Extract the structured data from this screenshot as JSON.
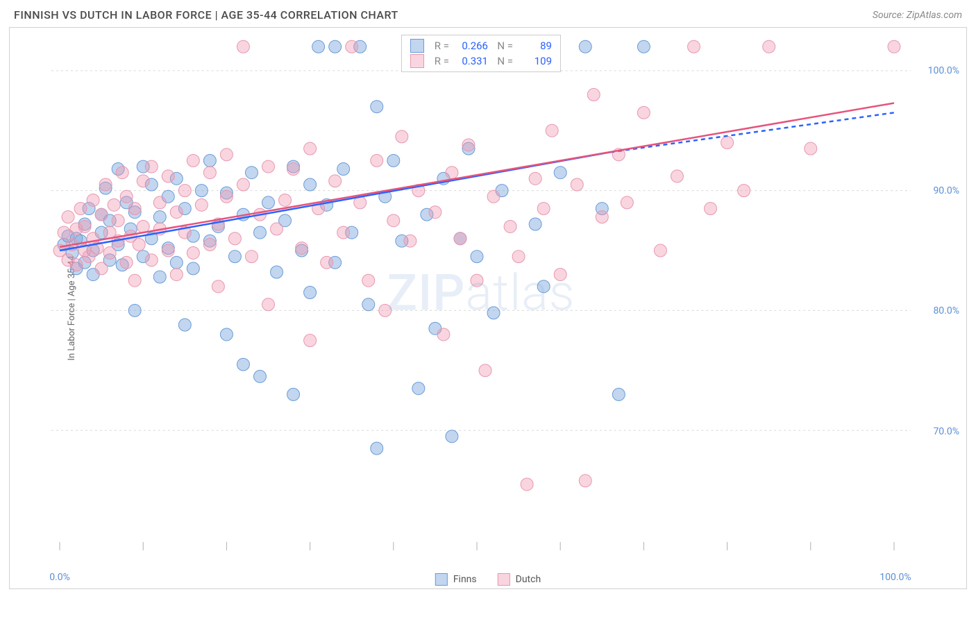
{
  "title": "FINNISH VS DUTCH IN LABOR FORCE | AGE 35-44 CORRELATION CHART",
  "source": "Source: ZipAtlas.com",
  "watermark": {
    "zip": "ZIP",
    "atlas": "atlas"
  },
  "y_axis": {
    "label": "In Labor Force | Age 35-44",
    "ticks": [
      70.0,
      80.0,
      90.0,
      100.0
    ],
    "tick_labels": [
      "70.0%",
      "80.0%",
      "90.0%",
      "100.0%"
    ],
    "domain_min": 60.0,
    "domain_max": 103.0
  },
  "x_axis": {
    "ticks": [
      0,
      10,
      20,
      30,
      40,
      50,
      60,
      70,
      80,
      90,
      100
    ],
    "labeled_ticks": [
      0,
      100
    ],
    "tick_labels": {
      "0": "0.0%",
      "100": "100.0%"
    },
    "domain_min": -1.0,
    "domain_max": 102.0
  },
  "series": [
    {
      "name": "Finns",
      "fill_color": "rgba(120,165,220,0.45)",
      "stroke_color": "#6a9bd8",
      "line_color": "#2962ff",
      "trend_start": {
        "x": 0,
        "y": 85.0
      },
      "trend_end_solid": {
        "x": 66,
        "y": 93.2
      },
      "trend_end_dashed": {
        "x": 100,
        "y": 96.5
      },
      "stats": {
        "R": "0.266",
        "N": "89"
      },
      "points": [
        {
          "x": 0.5,
          "y": 85.5
        },
        {
          "x": 1,
          "y": 86.2
        },
        {
          "x": 1.5,
          "y": 84.8
        },
        {
          "x": 2,
          "y": 86.0
        },
        {
          "x": 2,
          "y": 83.5
        },
        {
          "x": 2.5,
          "y": 85.8
        },
        {
          "x": 3,
          "y": 84.0
        },
        {
          "x": 3,
          "y": 87.2
        },
        {
          "x": 3.5,
          "y": 88.5
        },
        {
          "x": 4,
          "y": 85.0
        },
        {
          "x": 4,
          "y": 83.0
        },
        {
          "x": 5,
          "y": 86.5
        },
        {
          "x": 5,
          "y": 88.0
        },
        {
          "x": 5.5,
          "y": 90.2
        },
        {
          "x": 6,
          "y": 84.2
        },
        {
          "x": 6,
          "y": 87.5
        },
        {
          "x": 7,
          "y": 91.8
        },
        {
          "x": 7,
          "y": 85.5
        },
        {
          "x": 7.5,
          "y": 83.8
        },
        {
          "x": 8,
          "y": 89.0
        },
        {
          "x": 8.5,
          "y": 86.8
        },
        {
          "x": 9,
          "y": 80.0
        },
        {
          "x": 9,
          "y": 88.2
        },
        {
          "x": 10,
          "y": 92.0
        },
        {
          "x": 10,
          "y": 84.5
        },
        {
          "x": 11,
          "y": 86.0
        },
        {
          "x": 11,
          "y": 90.5
        },
        {
          "x": 12,
          "y": 82.8
        },
        {
          "x": 12,
          "y": 87.8
        },
        {
          "x": 13,
          "y": 85.2
        },
        {
          "x": 13,
          "y": 89.5
        },
        {
          "x": 14,
          "y": 91.0
        },
        {
          "x": 14,
          "y": 84.0
        },
        {
          "x": 15,
          "y": 88.5
        },
        {
          "x": 15,
          "y": 78.8
        },
        {
          "x": 16,
          "y": 86.2
        },
        {
          "x": 16,
          "y": 83.5
        },
        {
          "x": 17,
          "y": 90.0
        },
        {
          "x": 18,
          "y": 85.8
        },
        {
          "x": 18,
          "y": 92.5
        },
        {
          "x": 19,
          "y": 87.0
        },
        {
          "x": 20,
          "y": 78.0
        },
        {
          "x": 20,
          "y": 89.8
        },
        {
          "x": 21,
          "y": 84.5
        },
        {
          "x": 22,
          "y": 75.5
        },
        {
          "x": 22,
          "y": 88.0
        },
        {
          "x": 23,
          "y": 91.5
        },
        {
          "x": 24,
          "y": 74.5
        },
        {
          "x": 24,
          "y": 86.5
        },
        {
          "x": 25,
          "y": 89.0
        },
        {
          "x": 26,
          "y": 83.2
        },
        {
          "x": 27,
          "y": 87.5
        },
        {
          "x": 28,
          "y": 92.0
        },
        {
          "x": 28,
          "y": 73.0
        },
        {
          "x": 29,
          "y": 85.0
        },
        {
          "x": 30,
          "y": 90.5
        },
        {
          "x": 30,
          "y": 81.5
        },
        {
          "x": 31,
          "y": 102.0
        },
        {
          "x": 32,
          "y": 88.8
        },
        {
          "x": 33,
          "y": 84.0
        },
        {
          "x": 33,
          "y": 102.0
        },
        {
          "x": 34,
          "y": 91.8
        },
        {
          "x": 35,
          "y": 86.5
        },
        {
          "x": 36,
          "y": 102.0
        },
        {
          "x": 37,
          "y": 80.5
        },
        {
          "x": 38,
          "y": 68.5
        },
        {
          "x": 38,
          "y": 97.0
        },
        {
          "x": 39,
          "y": 89.5
        },
        {
          "x": 40,
          "y": 92.5
        },
        {
          "x": 41,
          "y": 85.8
        },
        {
          "x": 42,
          "y": 102.0
        },
        {
          "x": 43,
          "y": 73.5
        },
        {
          "x": 44,
          "y": 88.0
        },
        {
          "x": 45,
          "y": 78.5
        },
        {
          "x": 46,
          "y": 91.0
        },
        {
          "x": 47,
          "y": 69.5
        },
        {
          "x": 48,
          "y": 86.0
        },
        {
          "x": 49,
          "y": 93.5
        },
        {
          "x": 50,
          "y": 84.5
        },
        {
          "x": 52,
          "y": 79.8
        },
        {
          "x": 53,
          "y": 90.0
        },
        {
          "x": 55,
          "y": 102.0
        },
        {
          "x": 57,
          "y": 87.2
        },
        {
          "x": 58,
          "y": 82.0
        },
        {
          "x": 60,
          "y": 91.5
        },
        {
          "x": 63,
          "y": 102.0
        },
        {
          "x": 65,
          "y": 88.5
        },
        {
          "x": 67,
          "y": 73.0
        },
        {
          "x": 70,
          "y": 102.0
        }
      ]
    },
    {
      "name": "Dutch",
      "fill_color": "rgba(240,150,175,0.40)",
      "stroke_color": "#e797af",
      "line_color": "#e6537b",
      "trend_start": {
        "x": 0,
        "y": 85.3
      },
      "trend_end_solid": {
        "x": 100,
        "y": 97.3
      },
      "trend_end_dashed": null,
      "stats": {
        "R": "0.331",
        "N": "109"
      },
      "points": [
        {
          "x": 0,
          "y": 85.0
        },
        {
          "x": 0.5,
          "y": 86.5
        },
        {
          "x": 1,
          "y": 84.2
        },
        {
          "x": 1,
          "y": 87.8
        },
        {
          "x": 1.5,
          "y": 85.5
        },
        {
          "x": 2,
          "y": 86.8
        },
        {
          "x": 2,
          "y": 83.8
        },
        {
          "x": 2.5,
          "y": 88.5
        },
        {
          "x": 3,
          "y": 85.0
        },
        {
          "x": 3,
          "y": 87.0
        },
        {
          "x": 3.5,
          "y": 84.5
        },
        {
          "x": 4,
          "y": 89.2
        },
        {
          "x": 4,
          "y": 86.0
        },
        {
          "x": 4.5,
          "y": 85.2
        },
        {
          "x": 5,
          "y": 88.0
        },
        {
          "x": 5,
          "y": 83.5
        },
        {
          "x": 5.5,
          "y": 90.5
        },
        {
          "x": 6,
          "y": 86.5
        },
        {
          "x": 6,
          "y": 84.8
        },
        {
          "x": 6.5,
          "y": 88.8
        },
        {
          "x": 7,
          "y": 85.8
        },
        {
          "x": 7,
          "y": 87.5
        },
        {
          "x": 7.5,
          "y": 91.5
        },
        {
          "x": 8,
          "y": 84.0
        },
        {
          "x": 8,
          "y": 89.5
        },
        {
          "x": 8.5,
          "y": 86.2
        },
        {
          "x": 9,
          "y": 82.5
        },
        {
          "x": 9,
          "y": 88.5
        },
        {
          "x": 9.5,
          "y": 85.5
        },
        {
          "x": 10,
          "y": 90.8
        },
        {
          "x": 10,
          "y": 87.0
        },
        {
          "x": 11,
          "y": 84.2
        },
        {
          "x": 11,
          "y": 92.0
        },
        {
          "x": 12,
          "y": 86.8
        },
        {
          "x": 12,
          "y": 89.0
        },
        {
          "x": 13,
          "y": 85.0
        },
        {
          "x": 13,
          "y": 91.2
        },
        {
          "x": 14,
          "y": 88.2
        },
        {
          "x": 14,
          "y": 83.0
        },
        {
          "x": 15,
          "y": 90.0
        },
        {
          "x": 15,
          "y": 86.5
        },
        {
          "x": 16,
          "y": 92.5
        },
        {
          "x": 16,
          "y": 84.8
        },
        {
          "x": 17,
          "y": 88.8
        },
        {
          "x": 18,
          "y": 85.5
        },
        {
          "x": 18,
          "y": 91.5
        },
        {
          "x": 19,
          "y": 87.2
        },
        {
          "x": 19,
          "y": 82.0
        },
        {
          "x": 20,
          "y": 89.5
        },
        {
          "x": 20,
          "y": 93.0
        },
        {
          "x": 21,
          "y": 86.0
        },
        {
          "x": 22,
          "y": 90.5
        },
        {
          "x": 22,
          "y": 102.0
        },
        {
          "x": 23,
          "y": 84.5
        },
        {
          "x": 24,
          "y": 88.0
        },
        {
          "x": 25,
          "y": 92.0
        },
        {
          "x": 25,
          "y": 80.5
        },
        {
          "x": 26,
          "y": 86.8
        },
        {
          "x": 27,
          "y": 89.2
        },
        {
          "x": 28,
          "y": 91.8
        },
        {
          "x": 29,
          "y": 85.2
        },
        {
          "x": 30,
          "y": 93.5
        },
        {
          "x": 30,
          "y": 77.5
        },
        {
          "x": 31,
          "y": 88.5
        },
        {
          "x": 32,
          "y": 84.0
        },
        {
          "x": 33,
          "y": 90.8
        },
        {
          "x": 34,
          "y": 86.5
        },
        {
          "x": 35,
          "y": 102.0
        },
        {
          "x": 36,
          "y": 89.0
        },
        {
          "x": 37,
          "y": 82.5
        },
        {
          "x": 38,
          "y": 92.5
        },
        {
          "x": 39,
          "y": 80.0
        },
        {
          "x": 40,
          "y": 87.5
        },
        {
          "x": 41,
          "y": 94.5
        },
        {
          "x": 42,
          "y": 85.8
        },
        {
          "x": 43,
          "y": 90.0
        },
        {
          "x": 44,
          "y": 102.0
        },
        {
          "x": 45,
          "y": 88.2
        },
        {
          "x": 46,
          "y": 78.0
        },
        {
          "x": 47,
          "y": 91.5
        },
        {
          "x": 48,
          "y": 86.0
        },
        {
          "x": 49,
          "y": 93.8
        },
        {
          "x": 50,
          "y": 82.5
        },
        {
          "x": 51,
          "y": 75.0
        },
        {
          "x": 52,
          "y": 89.5
        },
        {
          "x": 53,
          "y": 102.0
        },
        {
          "x": 54,
          "y": 87.0
        },
        {
          "x": 55,
          "y": 84.5
        },
        {
          "x": 56,
          "y": 65.5
        },
        {
          "x": 57,
          "y": 91.0
        },
        {
          "x": 58,
          "y": 88.5
        },
        {
          "x": 59,
          "y": 95.0
        },
        {
          "x": 60,
          "y": 83.0
        },
        {
          "x": 62,
          "y": 90.5
        },
        {
          "x": 63,
          "y": 65.8
        },
        {
          "x": 64,
          "y": 98.0
        },
        {
          "x": 65,
          "y": 87.8
        },
        {
          "x": 67,
          "y": 93.0
        },
        {
          "x": 68,
          "y": 89.0
        },
        {
          "x": 70,
          "y": 96.5
        },
        {
          "x": 72,
          "y": 85.0
        },
        {
          "x": 74,
          "y": 91.2
        },
        {
          "x": 76,
          "y": 102.0
        },
        {
          "x": 78,
          "y": 88.5
        },
        {
          "x": 80,
          "y": 94.0
        },
        {
          "x": 82,
          "y": 90.0
        },
        {
          "x": 85,
          "y": 102.0
        },
        {
          "x": 90,
          "y": 93.5
        },
        {
          "x": 100,
          "y": 102.0
        }
      ]
    }
  ],
  "legend": {
    "label_R": "R =",
    "label_N": "N ="
  },
  "style": {
    "point_radius": 9,
    "grid_color": "#d8d8d8",
    "grid_dash": "3,4",
    "axis_color": "#b0b0b0",
    "tick_length": 12,
    "trend_line_width": 2.5,
    "tick_label_color": "#5b8fd6"
  }
}
